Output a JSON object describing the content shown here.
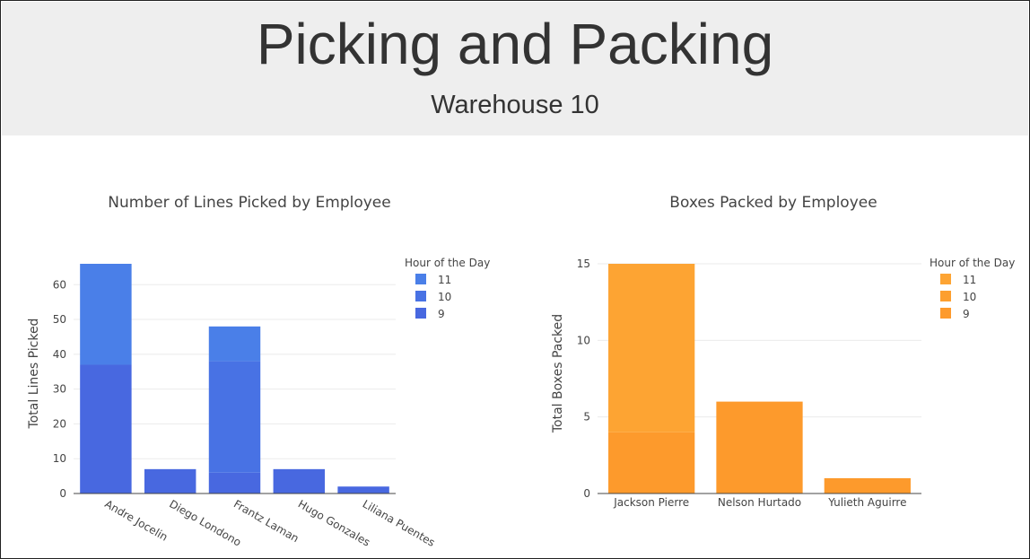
{
  "header": {
    "title": "Picking and Packing",
    "subtitle": "Warehouse 10"
  },
  "chart_data": [
    {
      "type": "bar",
      "stacked": true,
      "title": "Number of Lines Picked by Employee",
      "xlabel": "",
      "ylabel": "Total Lines Picked",
      "ylim": [
        0,
        66
      ],
      "yticks": [
        0,
        10,
        20,
        30,
        40,
        50,
        60
      ],
      "categories": [
        "Andre Jocelin",
        "Diego Londono",
        "Frantz Laman",
        "Hugo Gonzales",
        "Liliana Puentes"
      ],
      "series": [
        {
          "name": "9",
          "values": [
            37,
            7,
            6,
            7,
            2
          ]
        },
        {
          "name": "10",
          "values": [
            0,
            0,
            32,
            0,
            0
          ]
        },
        {
          "name": "11",
          "values": [
            29,
            0,
            10,
            0,
            0
          ]
        }
      ],
      "legend": {
        "title": "Hour of the Day",
        "position": "right",
        "order": [
          "11",
          "10",
          "9"
        ]
      },
      "colors": {
        "9": "#4868e0",
        "10": "#4872e4",
        "11": "#4a7fe8"
      },
      "grid": true,
      "tick_rotation": 30
    },
    {
      "type": "bar",
      "stacked": true,
      "title": "Boxes Packed by Employee",
      "xlabel": "",
      "ylabel": "Total Boxes Packed",
      "ylim": [
        0,
        15
      ],
      "yticks": [
        0,
        5,
        10,
        15
      ],
      "categories": [
        "Jackson Pierre",
        "Nelson Hurtado",
        "Yulieth Aguirre"
      ],
      "series": [
        {
          "name": "9",
          "values": [
            4,
            6,
            1
          ]
        },
        {
          "name": "10",
          "values": [
            0,
            0,
            0
          ]
        },
        {
          "name": "11",
          "values": [
            11,
            0,
            0
          ]
        }
      ],
      "legend": {
        "title": "Hour of the Day",
        "position": "right",
        "order": [
          "11",
          "10",
          "9"
        ]
      },
      "colors": {
        "9": "#fd9a2c",
        "10": "#fd9f2f",
        "11": "#fda433"
      },
      "grid": true,
      "tick_rotation": 0
    }
  ]
}
